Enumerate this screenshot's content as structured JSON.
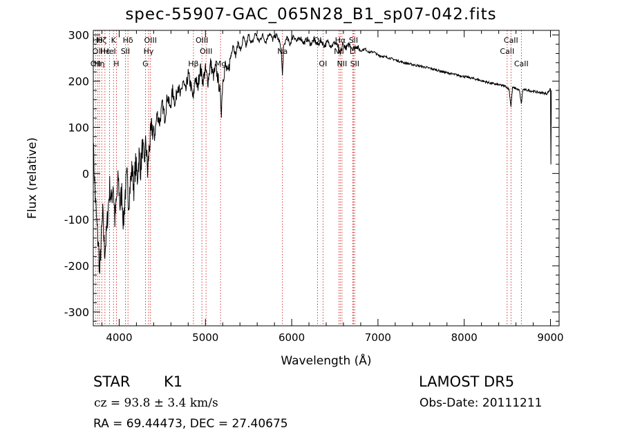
{
  "title": "spec-55907-GAC_065N28_B1_sp07-042.fits",
  "info": {
    "object_type": "STAR",
    "subclass": "K1",
    "survey": "LAMOST  DR5",
    "cz": "cz = 93.8 ± 3.4 km/s",
    "obs_date": "Obs-Date: 20111211",
    "radec": "RA =  69.44473, DEC =  27.40675"
  },
  "chart_data": {
    "type": "line",
    "xlabel": "Wavelength (Å)",
    "ylabel": "Flux (relative)",
    "xlim": [
      3700,
      9100
    ],
    "ylim": [
      -330,
      310
    ],
    "xticks": [
      4000,
      5000,
      6000,
      7000,
      8000,
      9000
    ],
    "yticks": [
      -300,
      -200,
      -100,
      0,
      100,
      200,
      300
    ],
    "line_color": "#000000",
    "marker_color": "#cc0000",
    "series": [
      {
        "points": [
          [
            3700,
            60
          ],
          [
            3720,
            -40
          ],
          [
            3740,
            -110
          ],
          [
            3760,
            -160
          ],
          [
            3775,
            -215
          ],
          [
            3790,
            -150
          ],
          [
            3810,
            -90
          ],
          [
            3830,
            -170
          ],
          [
            3850,
            -140
          ],
          [
            3870,
            -80
          ],
          [
            3890,
            -30
          ],
          [
            3910,
            -60
          ],
          [
            3930,
            -20
          ],
          [
            3950,
            -100
          ],
          [
            3970,
            -60
          ],
          [
            3990,
            -10
          ],
          [
            4010,
            -70
          ],
          [
            4030,
            -40
          ],
          [
            4050,
            -110
          ],
          [
            4070,
            -40
          ],
          [
            4090,
            -10
          ],
          [
            4110,
            -60
          ],
          [
            4130,
            -20
          ],
          [
            4150,
            10
          ],
          [
            4170,
            -30
          ],
          [
            4190,
            20
          ],
          [
            4210,
            -10
          ],
          [
            4230,
            40
          ],
          [
            4250,
            10
          ],
          [
            4270,
            60
          ],
          [
            4290,
            20
          ],
          [
            4310,
            70
          ],
          [
            4330,
            0
          ],
          [
            4350,
            60
          ],
          [
            4380,
            100
          ],
          [
            4410,
            80
          ],
          [
            4440,
            130
          ],
          [
            4470,
            110
          ],
          [
            4500,
            150
          ],
          [
            4530,
            120
          ],
          [
            4560,
            170
          ],
          [
            4590,
            140
          ],
          [
            4620,
            180
          ],
          [
            4650,
            150
          ],
          [
            4680,
            195
          ],
          [
            4710,
            165
          ],
          [
            4740,
            200
          ],
          [
            4770,
            175
          ],
          [
            4800,
            215
          ],
          [
            4830,
            190
          ],
          [
            4860,
            160
          ],
          [
            4880,
            210
          ],
          [
            4910,
            185
          ],
          [
            4940,
            230
          ],
          [
            4970,
            200
          ],
          [
            5000,
            225
          ],
          [
            5030,
            200
          ],
          [
            5060,
            240
          ],
          [
            5090,
            210
          ],
          [
            5120,
            230
          ],
          [
            5150,
            200
          ],
          [
            5170,
            175
          ],
          [
            5185,
            135
          ],
          [
            5200,
            200
          ],
          [
            5230,
            235
          ],
          [
            5260,
            215
          ],
          [
            5290,
            250
          ],
          [
            5320,
            280
          ],
          [
            5350,
            255
          ],
          [
            5380,
            285
          ],
          [
            5410,
            265
          ],
          [
            5440,
            295
          ],
          [
            5470,
            275
          ],
          [
            5500,
            300
          ],
          [
            5540,
            280
          ],
          [
            5580,
            305
          ],
          [
            5620,
            285
          ],
          [
            5660,
            300
          ],
          [
            5700,
            285
          ],
          [
            5740,
            305
          ],
          [
            5780,
            290
          ],
          [
            5820,
            300
          ],
          [
            5860,
            285
          ],
          [
            5880,
            260
          ],
          [
            5893,
            210
          ],
          [
            5905,
            270
          ],
          [
            5940,
            295
          ],
          [
            5980,
            280
          ],
          [
            6020,
            300
          ],
          [
            6060,
            285
          ],
          [
            6100,
            295
          ],
          [
            6140,
            282
          ],
          [
            6180,
            292
          ],
          [
            6220,
            280
          ],
          [
            6260,
            290
          ],
          [
            6300,
            278
          ],
          [
            6340,
            288
          ],
          [
            6380,
            276
          ],
          [
            6420,
            286
          ],
          [
            6460,
            276
          ],
          [
            6500,
            284
          ],
          [
            6540,
            274
          ],
          [
            6563,
            255
          ],
          [
            6590,
            280
          ],
          [
            6630,
            272
          ],
          [
            6670,
            280
          ],
          [
            6710,
            270
          ],
          [
            6750,
            276
          ],
          [
            6800,
            266
          ],
          [
            6850,
            270
          ],
          [
            6900,
            262
          ],
          [
            6950,
            264
          ],
          [
            7000,
            256
          ],
          [
            7100,
            252
          ],
          [
            7200,
            246
          ],
          [
            7300,
            240
          ],
          [
            7400,
            236
          ],
          [
            7500,
            232
          ],
          [
            7600,
            228
          ],
          [
            7700,
            223
          ],
          [
            7800,
            218
          ],
          [
            7900,
            214
          ],
          [
            8000,
            210
          ],
          [
            8100,
            206
          ],
          [
            8200,
            201
          ],
          [
            8300,
            196
          ],
          [
            8400,
            192
          ],
          [
            8480,
            189
          ],
          [
            8520,
            182
          ],
          [
            8542,
            145
          ],
          [
            8560,
            186
          ],
          [
            8600,
            184
          ],
          [
            8640,
            180
          ],
          [
            8662,
            150
          ],
          [
            8680,
            182
          ],
          [
            8740,
            180
          ],
          [
            8800,
            178
          ],
          [
            8860,
            176
          ],
          [
            8920,
            174
          ],
          [
            8960,
            173
          ],
          [
            8990,
            180
          ],
          [
            9000,
            185
          ],
          [
            9005,
            20
          ],
          [
            9010,
            180
          ]
        ]
      }
    ],
    "line_markers": [
      {
        "wavelength": 3727,
        "labels": [
          "OII"
        ],
        "row": 3
      },
      {
        "wavelength": 3750,
        "labels": [
          "Hθ",
          "OII"
        ],
        "row": 1
      },
      {
        "wavelength": 3771,
        "labels": [
          "Hη"
        ],
        "row": 3
      },
      {
        "wavelength": 3798,
        "labels": [
          "Hζ"
        ],
        "row": 1
      },
      {
        "wavelength": 3835,
        "labels": [
          "Hε"
        ],
        "row": 2
      },
      {
        "wavelength": 3889,
        "labels": [
          "HeI"
        ],
        "row": 2
      },
      {
        "wavelength": 3934,
        "labels": [
          "K"
        ],
        "row": 1
      },
      {
        "wavelength": 3968,
        "labels": [
          "H"
        ],
        "row": 3
      },
      {
        "wavelength": 4072,
        "labels": [
          "SII"
        ],
        "row": 2
      },
      {
        "wavelength": 4102,
        "labels": [
          "Hδ"
        ],
        "row": 1
      },
      {
        "wavelength": 4304,
        "labels": [
          "G"
        ],
        "row": 3
      },
      {
        "wavelength": 4341,
        "labels": [
          "Hγ"
        ],
        "row": 2
      },
      {
        "wavelength": 4363,
        "labels": [
          "OIII"
        ],
        "row": 1
      },
      {
        "wavelength": 4861,
        "labels": [
          "Hβ"
        ],
        "row": 3
      },
      {
        "wavelength": 4959,
        "labels": [
          "OIII"
        ],
        "row": 1
      },
      {
        "wavelength": 5007,
        "labels": [
          "OIII"
        ],
        "row": 2
      },
      {
        "wavelength": 5175,
        "labels": [
          "Mg"
        ],
        "row": 3
      },
      {
        "wavelength": 5893,
        "labels": [
          "Na"
        ],
        "row": 2
      },
      {
        "wavelength": 6300,
        "labels": [
          "OI"
        ],
        "row": 1
      },
      {
        "wavelength": 6363,
        "labels": [
          "OI"
        ],
        "row": 3
      },
      {
        "wavelength": 6548,
        "labels": [
          "NII"
        ],
        "row": 2
      },
      {
        "wavelength": 6563,
        "labels": [
          "Hα"
        ],
        "row": 1
      },
      {
        "wavelength": 6583,
        "labels": [
          "NII"
        ],
        "row": 3
      },
      {
        "wavelength": 6708,
        "labels": [
          "Li"
        ],
        "row": 2
      },
      {
        "wavelength": 6716,
        "labels": [
          "SII"
        ],
        "row": 1
      },
      {
        "wavelength": 6731,
        "labels": [
          "SII"
        ],
        "row": 3
      },
      {
        "wavelength": 8498,
        "labels": [
          "CaII"
        ],
        "row": 2
      },
      {
        "wavelength": 8542,
        "labels": [
          "CaII"
        ],
        "row": 1
      },
      {
        "wavelength": 8662,
        "labels": [
          "CaII"
        ],
        "row": 3
      }
    ]
  }
}
